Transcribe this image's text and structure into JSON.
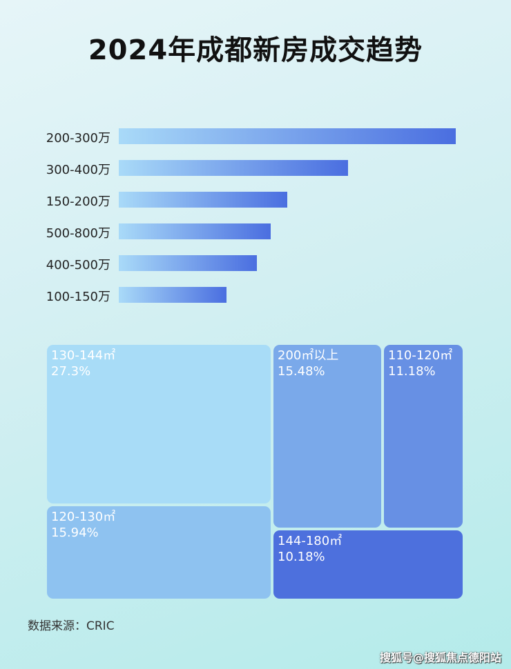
{
  "chart_data": [
    {
      "type": "bar",
      "orientation": "horizontal",
      "title": "2024年成都新房成交趋势",
      "categories": [
        "200-300万",
        "300-400万",
        "150-200万",
        "500-800万",
        "400-500万",
        "100-150万"
      ],
      "values_relative_percent": [
        100,
        68,
        50,
        45,
        41,
        32
      ],
      "colors": {
        "start": "#a9daf8",
        "end": "#4a6ee0"
      }
    },
    {
      "type": "treemap",
      "items": [
        {
          "label": "130-144㎡",
          "value": "27.3%",
          "color": "#a8dcf7"
        },
        {
          "label": "120-130㎡",
          "value": "15.94%",
          "color": "#8ec2f0"
        },
        {
          "label": "200㎡以上",
          "value": "15.48%",
          "color": "#7aa9ea"
        },
        {
          "label": "110-120㎡",
          "value": "11.18%",
          "color": "#6790e4"
        },
        {
          "label": "144-180㎡",
          "value": "10.18%",
          "color": "#4d70dd"
        }
      ]
    }
  ],
  "source": "数据来源：CRIC",
  "watermark": "搜狐号@搜狐焦点德阳站"
}
